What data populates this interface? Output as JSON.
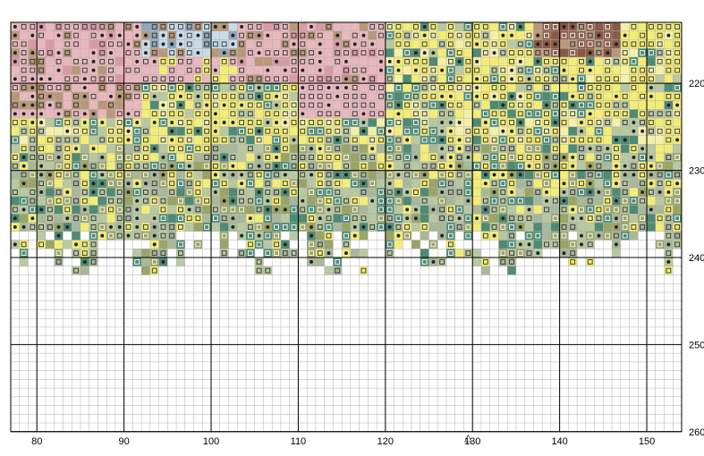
{
  "pattern": {
    "col_start": 77,
    "row_start": 213,
    "cols": 77,
    "rows": 47,
    "filled_until_row": 242,
    "center_col": 129,
    "bold_every": 10
  },
  "axis": {
    "x_labels": [
      "80",
      "90",
      "100",
      "110",
      "120",
      "130",
      "140",
      "150"
    ],
    "y_labels": [
      "220",
      "230",
      "240",
      "250",
      "260"
    ],
    "center_marker": "△"
  },
  "palette": {
    "pink": "#e8b8be",
    "pink_dark": "#d99aa5",
    "yellow": "#f2ec78",
    "yellow_pale": "#f4f0a8",
    "green_light": "#b8c8a0",
    "olive": "#9aa466",
    "teal": "#4f8a74",
    "teal_dark": "#2f6b5a",
    "sage": "#a8b89a",
    "gray_blue": "#8ea8b8",
    "blue_light": "#c8dbe8",
    "brown": "#8a5a48",
    "tan": "#b89878",
    "grid_line": "#b0b0b0",
    "bold_line": "#000000"
  }
}
